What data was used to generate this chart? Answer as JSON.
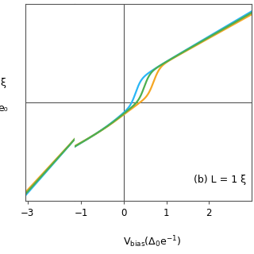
{
  "annotation": "(b) L = 1 ξ",
  "ylabel_top": "ξ",
  "ylabel_bot": "e₀",
  "xlim_left": [
    -3.1,
    -0.85
  ],
  "xlim_main": [
    -1.15,
    3.0
  ],
  "ylim": [
    -0.92,
    0.92
  ],
  "xticks_left": [
    -3
  ],
  "xticks_main": [
    -1,
    0,
    1,
    2
  ],
  "colors": [
    "#29b6f6",
    "#f5a623",
    "#4caf50"
  ],
  "linewidth": 1.6,
  "xlabel": "V$_\\mathregular{bias}$(Δ$_\\mathregular{0}$e$^{-1}$)"
}
